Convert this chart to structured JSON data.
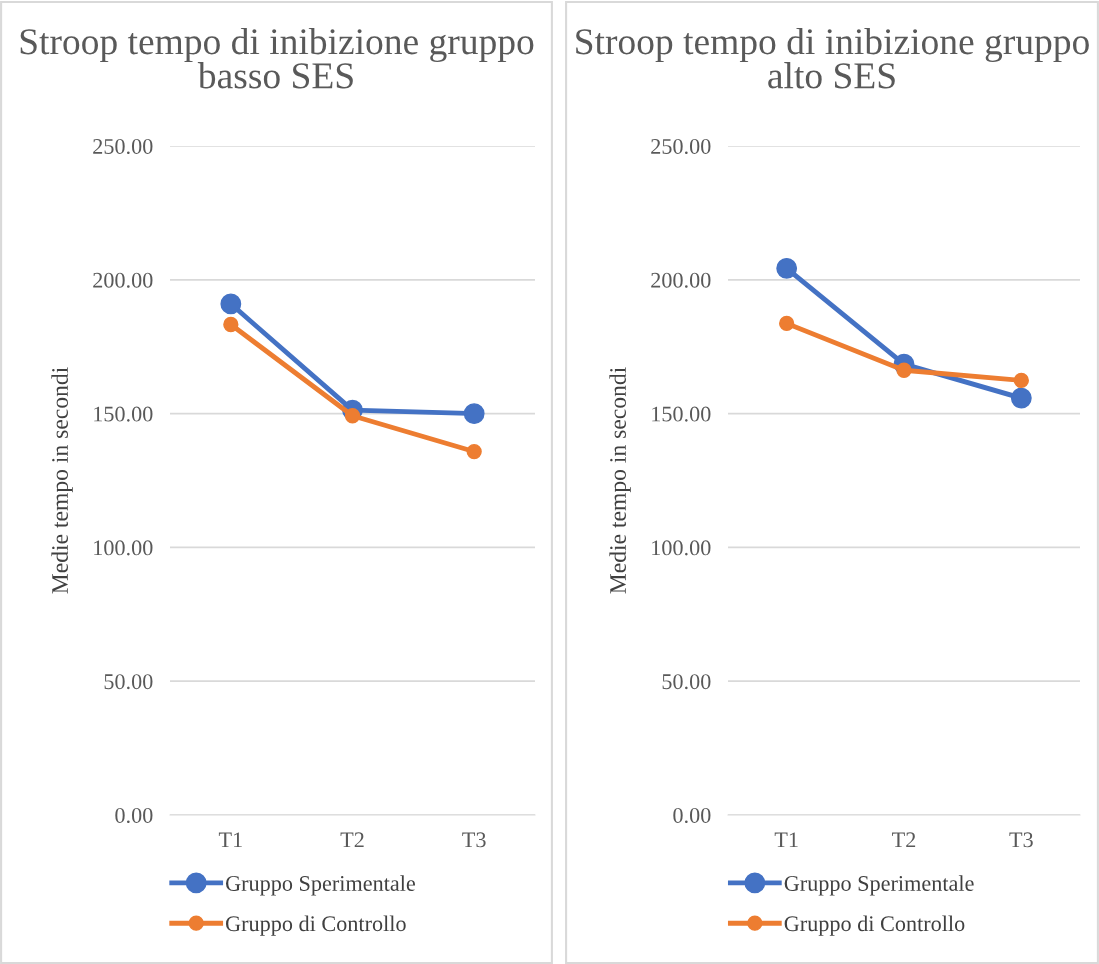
{
  "chart_data": [
    {
      "type": "line",
      "title": "Stroop tempo di inibizione gruppo basso SES",
      "ylabel": "Medie tempo in secondi",
      "categories": [
        "T1",
        "T2",
        "T3"
      ],
      "series": [
        {
          "name": "Gruppo Sperimentale",
          "color": "#4472c4",
          "values": [
            191,
            151.3,
            150
          ]
        },
        {
          "name": "Gruppo di Controllo",
          "color": "#ed7d31",
          "values": [
            183.3,
            149.2,
            135.8
          ]
        }
      ],
      "ylim": [
        0,
        250
      ],
      "yticks": [
        {
          "value": 0,
          "label": "0.00"
        },
        {
          "value": 50,
          "label": "50.00"
        },
        {
          "value": 100,
          "label": "100.00"
        },
        {
          "value": 150,
          "label": "150.00"
        },
        {
          "value": 200,
          "label": "200.00"
        },
        {
          "value": 250,
          "label": "250.00"
        }
      ],
      "grid": "y",
      "legend": "bottom",
      "marker": "circle"
    },
    {
      "type": "line",
      "title": "Stroop tempo di inibizione gruppo alto SES",
      "ylabel": "Medie tempo in secondi",
      "categories": [
        "T1",
        "T2",
        "T3"
      ],
      "series": [
        {
          "name": "Gruppo Sperimentale",
          "color": "#4472c4",
          "values": [
            204.3,
            168.5,
            155.8
          ]
        },
        {
          "name": "Gruppo di Controllo",
          "color": "#ed7d31",
          "values": [
            183.7,
            166.2,
            162.4
          ]
        }
      ],
      "ylim": [
        0,
        250
      ],
      "yticks": [
        {
          "value": 0,
          "label": "0.00"
        },
        {
          "value": 50,
          "label": "50.00"
        },
        {
          "value": 100,
          "label": "100.00"
        },
        {
          "value": 150,
          "label": "150.00"
        },
        {
          "value": 200,
          "label": "200.00"
        },
        {
          "value": 250,
          "label": "250.00"
        }
      ],
      "grid": "y",
      "legend": "bottom",
      "marker": "circle"
    }
  ]
}
